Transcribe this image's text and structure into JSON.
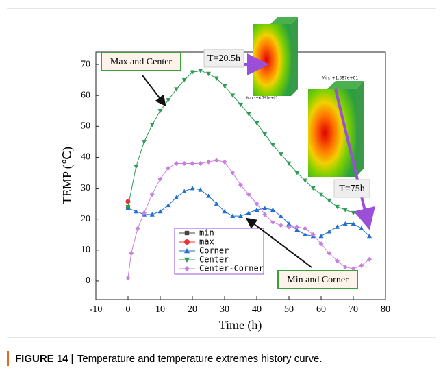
{
  "chart_data": {
    "type": "line",
    "xlabel": "Time (h)",
    "ylabel": "TEMP (℃)",
    "xlim": [
      -10,
      80
    ],
    "xticks": [
      -10,
      0,
      10,
      20,
      30,
      40,
      50,
      60,
      70,
      80
    ],
    "ylim": [
      -6,
      74
    ],
    "yticks": [
      0,
      10,
      20,
      30,
      40,
      50,
      60,
      70
    ],
    "series": [
      {
        "name": "min",
        "color": "#444444",
        "marker": "square",
        "x": [
          0
        ],
        "values": [
          23.5
        ]
      },
      {
        "name": "max",
        "color": "#ee3333",
        "marker": "circle",
        "x": [
          0
        ],
        "values": [
          25.7
        ]
      },
      {
        "name": "Corner",
        "color": "#1f6fd0",
        "marker": "triangle-up",
        "x": [
          0,
          2.5,
          5,
          7.5,
          10,
          12.5,
          15,
          17.5,
          20,
          22.5,
          25,
          27.5,
          30,
          32.5,
          35,
          37.5,
          40,
          42.5,
          45,
          47.5,
          50,
          52.5,
          55,
          57.5,
          60,
          62.5,
          65,
          67.5,
          70,
          72.5,
          75
        ],
        "values": [
          23.5,
          22.5,
          21.5,
          21.5,
          22.5,
          24.5,
          27,
          29,
          30,
          29.5,
          27.5,
          25,
          22.5,
          21,
          21,
          22,
          23,
          23.5,
          23,
          21,
          18.5,
          16.5,
          15,
          14.5,
          14.5,
          16,
          17.5,
          18.5,
          18.5,
          17,
          14.5
        ]
      },
      {
        "name": "Center",
        "color": "#2e9a55",
        "marker": "triangle-down",
        "x": [
          0,
          2.5,
          5,
          7.5,
          10,
          12.5,
          15,
          17.5,
          20,
          22.5,
          25,
          27.5,
          30,
          32.5,
          35,
          37.5,
          40,
          42.5,
          45,
          47.5,
          50,
          52.5,
          55,
          57.5,
          60,
          62.5,
          65,
          67.5,
          70,
          72.5,
          75
        ],
        "values": [
          24,
          37,
          45,
          50.5,
          55,
          58.5,
          62,
          65,
          67.5,
          68,
          67,
          65.5,
          63,
          60,
          57,
          54,
          51,
          47.5,
          44,
          41,
          38,
          35,
          32.5,
          30,
          28,
          26,
          24,
          23,
          22,
          21.5,
          20
        ]
      },
      {
        "name": "Center-Corner",
        "color": "#c77fe0",
        "marker": "diamond",
        "x": [
          0,
          1,
          3,
          5,
          7.5,
          10,
          12.5,
          15,
          17.5,
          20,
          22.5,
          25,
          27.5,
          30,
          32.5,
          35,
          37.5,
          40,
          42.5,
          45,
          47.5,
          50,
          52.5,
          55,
          57.5,
          60,
          62.5,
          65,
          67.5,
          70,
          72.5,
          75
        ],
        "values": [
          1,
          9,
          17,
          22,
          28,
          33,
          36.5,
          38,
          38,
          38,
          38,
          38.5,
          39,
          38.5,
          35,
          31,
          28,
          25,
          21.5,
          19,
          18,
          17.5,
          17.5,
          17,
          15,
          12,
          9,
          6.5,
          4.5,
          4,
          5,
          7
        ]
      }
    ],
    "annotations": [
      "Max and Center",
      "T=20.5h",
      "Min and Corner",
      "T=75h",
      "Max: +6.791e+01",
      "Min: +1.387e+01"
    ]
  },
  "caption": {
    "label": "FIGURE 14 |",
    "text": "Temperature and temperature extremes history curve."
  }
}
